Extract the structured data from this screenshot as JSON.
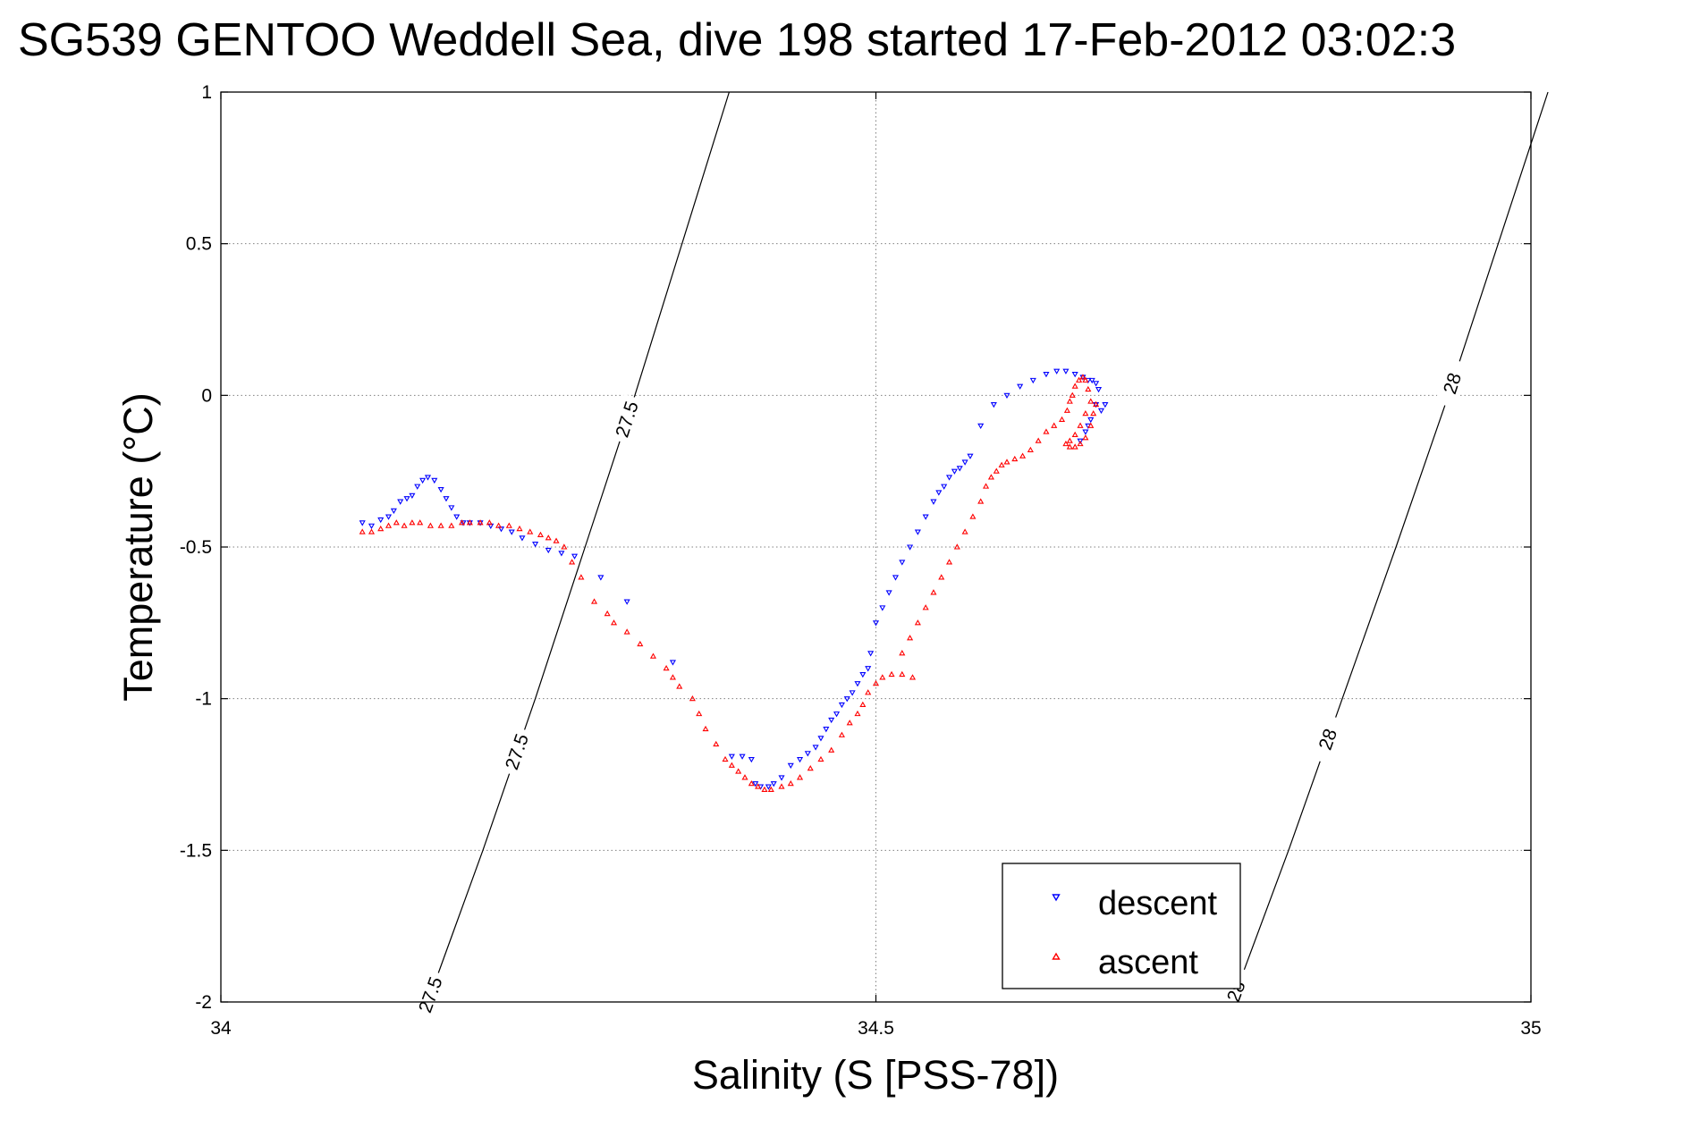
{
  "chart_data": {
    "type": "scatter",
    "title": "SG539 GENTOO Weddell Sea, dive 198 started 17-Feb-2012 03:02:3",
    "xlabel": "Salinity (S [PSS-78])",
    "ylabel": "Temperature (°C)",
    "xlim": [
      34,
      35
    ],
    "ylim": [
      -2,
      1
    ],
    "x_ticks": [
      "34",
      "34.5",
      "35"
    ],
    "y_ticks": [
      "1",
      "0.5",
      "0",
      "-0.5",
      "-1",
      "-1.5",
      "-2"
    ],
    "grid": true,
    "legend_position": "bottom-right",
    "contours": [
      {
        "label": "27.5",
        "label_salinity": [
          34.31,
          34.226,
          34.16
        ],
        "points": [
          [
            34.158,
            -2.0
          ],
          [
            34.2,
            -1.5
          ],
          [
            34.24,
            -1.0
          ],
          [
            34.278,
            -0.5
          ],
          [
            34.316,
            0.0
          ],
          [
            34.352,
            0.5
          ],
          [
            34.388,
            1.0
          ]
        ]
      },
      {
        "label": "28",
        "label_salinity": [
          34.94,
          34.845,
          34.775
        ],
        "points": [
          [
            34.772,
            -2.0
          ],
          [
            34.815,
            -1.5
          ],
          [
            34.856,
            -1.0
          ],
          [
            34.897,
            -0.5
          ],
          [
            34.937,
            0.0
          ],
          [
            34.975,
            0.5
          ],
          [
            35.013,
            1.0
          ]
        ]
      }
    ],
    "series": [
      {
        "name": "descent",
        "marker": "triangle-down",
        "color": "#0000ff",
        "points": [
          [
            34.108,
            -0.42
          ],
          [
            34.115,
            -0.43
          ],
          [
            34.122,
            -0.41
          ],
          [
            34.128,
            -0.4
          ],
          [
            34.132,
            -0.38
          ],
          [
            34.137,
            -0.35
          ],
          [
            34.142,
            -0.34
          ],
          [
            34.146,
            -0.33
          ],
          [
            34.15,
            -0.3
          ],
          [
            34.154,
            -0.28
          ],
          [
            34.158,
            -0.27
          ],
          [
            34.163,
            -0.28
          ],
          [
            34.168,
            -0.31
          ],
          [
            34.172,
            -0.34
          ],
          [
            34.176,
            -0.37
          ],
          [
            34.18,
            -0.4
          ],
          [
            34.185,
            -0.42
          ],
          [
            34.19,
            -0.42
          ],
          [
            34.198,
            -0.42
          ],
          [
            34.206,
            -0.43
          ],
          [
            34.214,
            -0.44
          ],
          [
            34.222,
            -0.45
          ],
          [
            34.23,
            -0.47
          ],
          [
            34.24,
            -0.49
          ],
          [
            34.25,
            -0.51
          ],
          [
            34.26,
            -0.52
          ],
          [
            34.27,
            -0.53
          ],
          [
            34.29,
            -0.6
          ],
          [
            34.31,
            -0.68
          ],
          [
            34.345,
            -0.88
          ],
          [
            34.39,
            -1.19
          ],
          [
            34.398,
            -1.19
          ],
          [
            34.405,
            -1.2
          ],
          [
            34.408,
            -1.28
          ],
          [
            34.412,
            -1.29
          ],
          [
            34.418,
            -1.29
          ],
          [
            34.422,
            -1.28
          ],
          [
            34.428,
            -1.26
          ],
          [
            34.435,
            -1.22
          ],
          [
            34.442,
            -1.2
          ],
          [
            34.448,
            -1.18
          ],
          [
            34.454,
            -1.16
          ],
          [
            34.458,
            -1.13
          ],
          [
            34.462,
            -1.1
          ],
          [
            34.466,
            -1.07
          ],
          [
            34.47,
            -1.05
          ],
          [
            34.474,
            -1.02
          ],
          [
            34.478,
            -1.0
          ],
          [
            34.482,
            -0.98
          ],
          [
            34.486,
            -0.95
          ],
          [
            34.49,
            -0.92
          ],
          [
            34.494,
            -0.9
          ],
          [
            34.496,
            -0.85
          ],
          [
            34.5,
            -0.75
          ],
          [
            34.505,
            -0.7
          ],
          [
            34.51,
            -0.65
          ],
          [
            34.515,
            -0.6
          ],
          [
            34.52,
            -0.55
          ],
          [
            34.526,
            -0.5
          ],
          [
            34.532,
            -0.45
          ],
          [
            34.538,
            -0.4
          ],
          [
            34.544,
            -0.35
          ],
          [
            34.548,
            -0.32
          ],
          [
            34.552,
            -0.3
          ],
          [
            34.556,
            -0.27
          ],
          [
            34.56,
            -0.25
          ],
          [
            34.564,
            -0.24
          ],
          [
            34.568,
            -0.22
          ],
          [
            34.572,
            -0.2
          ],
          [
            34.58,
            -0.1
          ],
          [
            34.59,
            -0.03
          ],
          [
            34.6,
            0.0
          ],
          [
            34.61,
            0.03
          ],
          [
            34.62,
            0.05
          ],
          [
            34.63,
            0.07
          ],
          [
            34.638,
            0.08
          ],
          [
            34.645,
            0.08
          ],
          [
            34.652,
            0.07
          ],
          [
            34.658,
            0.06
          ],
          [
            34.662,
            0.05
          ],
          [
            34.665,
            0.05
          ],
          [
            34.668,
            0.04
          ],
          [
            34.67,
            0.02
          ],
          [
            34.668,
            -0.03
          ],
          [
            34.664,
            -0.08
          ],
          [
            34.66,
            -0.12
          ],
          [
            34.656,
            -0.15
          ],
          [
            34.662,
            -0.1
          ],
          [
            34.672,
            -0.05
          ],
          [
            34.675,
            -0.03
          ]
        ]
      },
      {
        "name": "ascent",
        "marker": "triangle-up",
        "color": "#ff0000",
        "points": [
          [
            34.108,
            -0.45
          ],
          [
            34.115,
            -0.45
          ],
          [
            34.122,
            -0.44
          ],
          [
            34.128,
            -0.43
          ],
          [
            34.134,
            -0.42
          ],
          [
            34.14,
            -0.43
          ],
          [
            34.146,
            -0.42
          ],
          [
            34.152,
            -0.42
          ],
          [
            34.16,
            -0.43
          ],
          [
            34.168,
            -0.43
          ],
          [
            34.176,
            -0.43
          ],
          [
            34.184,
            -0.42
          ],
          [
            34.19,
            -0.42
          ],
          [
            34.198,
            -0.42
          ],
          [
            34.205,
            -0.42
          ],
          [
            34.212,
            -0.43
          ],
          [
            34.22,
            -0.43
          ],
          [
            34.228,
            -0.44
          ],
          [
            34.236,
            -0.45
          ],
          [
            34.244,
            -0.46
          ],
          [
            34.25,
            -0.47
          ],
          [
            34.256,
            -0.48
          ],
          [
            34.262,
            -0.5
          ],
          [
            34.268,
            -0.55
          ],
          [
            34.275,
            -0.6
          ],
          [
            34.285,
            -0.68
          ],
          [
            34.295,
            -0.72
          ],
          [
            34.3,
            -0.75
          ],
          [
            34.31,
            -0.78
          ],
          [
            34.32,
            -0.82
          ],
          [
            34.33,
            -0.86
          ],
          [
            34.34,
            -0.9
          ],
          [
            34.345,
            -0.93
          ],
          [
            34.35,
            -0.96
          ],
          [
            34.36,
            -1.0
          ],
          [
            34.365,
            -1.05
          ],
          [
            34.37,
            -1.1
          ],
          [
            34.378,
            -1.15
          ],
          [
            34.385,
            -1.2
          ],
          [
            34.39,
            -1.22
          ],
          [
            34.395,
            -1.24
          ],
          [
            34.4,
            -1.26
          ],
          [
            34.405,
            -1.28
          ],
          [
            34.41,
            -1.29
          ],
          [
            34.415,
            -1.3
          ],
          [
            34.42,
            -1.3
          ],
          [
            34.428,
            -1.29
          ],
          [
            34.435,
            -1.28
          ],
          [
            34.442,
            -1.26
          ],
          [
            34.45,
            -1.23
          ],
          [
            34.458,
            -1.2
          ],
          [
            34.466,
            -1.17
          ],
          [
            34.474,
            -1.12
          ],
          [
            34.48,
            -1.08
          ],
          [
            34.486,
            -1.05
          ],
          [
            34.49,
            -1.02
          ],
          [
            34.494,
            -0.98
          ],
          [
            34.5,
            -0.95
          ],
          [
            34.505,
            -0.93
          ],
          [
            34.512,
            -0.92
          ],
          [
            34.52,
            -0.92
          ],
          [
            34.528,
            -0.93
          ],
          [
            34.52,
            -0.85
          ],
          [
            34.526,
            -0.8
          ],
          [
            34.532,
            -0.75
          ],
          [
            34.538,
            -0.7
          ],
          [
            34.544,
            -0.65
          ],
          [
            34.55,
            -0.6
          ],
          [
            34.556,
            -0.55
          ],
          [
            34.562,
            -0.5
          ],
          [
            34.568,
            -0.45
          ],
          [
            34.574,
            -0.4
          ],
          [
            34.58,
            -0.35
          ],
          [
            34.584,
            -0.3
          ],
          [
            34.588,
            -0.27
          ],
          [
            34.592,
            -0.25
          ],
          [
            34.596,
            -0.23
          ],
          [
            34.6,
            -0.22
          ],
          [
            34.606,
            -0.21
          ],
          [
            34.612,
            -0.2
          ],
          [
            34.618,
            -0.18
          ],
          [
            34.624,
            -0.15
          ],
          [
            34.63,
            -0.12
          ],
          [
            34.636,
            -0.1
          ],
          [
            34.642,
            -0.08
          ],
          [
            34.646,
            -0.05
          ],
          [
            34.648,
            -0.02
          ],
          [
            34.65,
            0.0
          ],
          [
            34.652,
            0.03
          ],
          [
            34.655,
            0.05
          ],
          [
            34.658,
            0.06
          ],
          [
            34.66,
            0.05
          ],
          [
            34.662,
            0.02
          ],
          [
            34.664,
            -0.02
          ],
          [
            34.66,
            -0.06
          ],
          [
            34.656,
            -0.1
          ],
          [
            34.652,
            -0.13
          ],
          [
            34.648,
            -0.15
          ],
          [
            34.645,
            -0.16
          ],
          [
            34.648,
            -0.17
          ],
          [
            34.652,
            -0.17
          ],
          [
            34.656,
            -0.16
          ],
          [
            34.66,
            -0.14
          ],
          [
            34.664,
            -0.1
          ],
          [
            34.666,
            -0.06
          ],
          [
            34.668,
            -0.03
          ]
        ]
      }
    ]
  }
}
